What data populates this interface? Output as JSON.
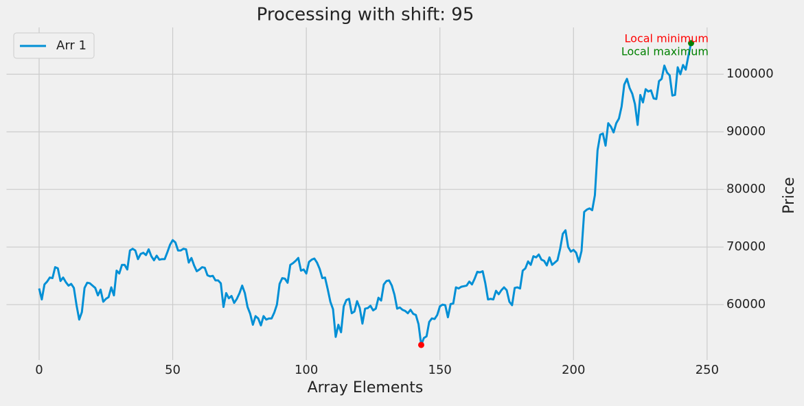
{
  "chart_data": {
    "type": "line",
    "title": "Processing with shift: 95",
    "xlabel": "Array Elements",
    "ylabel": "Price",
    "x": [
      0,
      1,
      2,
      3,
      4,
      5,
      6,
      7,
      8,
      9,
      10,
      11,
      12,
      13,
      14,
      15,
      16,
      17,
      18,
      19,
      20,
      21,
      22,
      23,
      24,
      25,
      26,
      27,
      28,
      29,
      30,
      31,
      32,
      33,
      34,
      35,
      36,
      37,
      38,
      39,
      40,
      41,
      42,
      43,
      44,
      45,
      46,
      47,
      48,
      49,
      50,
      51,
      52,
      53,
      54,
      55,
      56,
      57,
      58,
      59,
      60,
      61,
      62,
      63,
      64,
      65,
      66,
      67,
      68,
      69,
      70,
      71,
      72,
      73,
      74,
      75,
      76,
      77,
      78,
      79,
      80,
      81,
      82,
      83,
      84,
      85,
      86,
      87,
      88,
      89,
      90,
      91,
      92,
      93,
      94,
      95,
      96,
      97,
      98,
      99,
      100,
      101,
      102,
      103,
      104,
      105,
      106,
      107,
      108,
      109,
      110,
      111,
      112,
      113,
      114,
      115,
      116,
      117,
      118,
      119,
      120,
      121,
      122,
      123,
      124,
      125,
      126,
      127,
      128,
      129,
      130,
      131,
      132,
      133,
      134,
      135,
      136,
      137,
      138,
      139,
      140,
      141,
      142,
      143,
      144,
      145,
      146,
      147,
      148,
      149,
      150,
      151,
      152,
      153,
      154,
      155,
      156,
      157,
      158,
      159,
      160,
      161,
      162,
      163,
      164,
      165,
      166,
      167,
      168,
      169,
      170,
      171,
      172,
      173,
      174,
      175,
      176,
      177,
      178,
      179,
      180,
      181,
      182,
      183,
      184,
      185,
      186,
      187,
      188,
      189,
      190,
      191,
      192,
      193,
      194,
      195,
      196,
      197,
      198,
      199,
      200,
      201,
      202,
      203,
      204,
      205,
      206,
      207,
      208,
      209,
      210,
      211,
      212,
      213,
      214,
      215,
      216,
      217,
      218,
      219,
      220,
      221,
      222,
      223,
      224,
      225,
      226,
      227,
      228,
      229,
      230,
      231,
      232,
      233,
      234,
      235,
      236,
      237,
      238,
      239,
      240,
      241,
      242,
      243,
      244
    ],
    "series": [
      {
        "name": "Arr 1",
        "color": "#008fd5",
        "values": [
          62800,
          60900,
          63500,
          64000,
          64700,
          64600,
          66500,
          66300,
          64100,
          64700,
          63900,
          63300,
          63600,
          62900,
          59900,
          57400,
          58700,
          62900,
          63800,
          63700,
          63300,
          62900,
          61600,
          62600,
          60500,
          61000,
          61300,
          63000,
          61600,
          65900,
          65400,
          66900,
          66900,
          66100,
          69400,
          69700,
          69400,
          67900,
          68800,
          69000,
          68600,
          69600,
          68400,
          67700,
          68500,
          67800,
          67900,
          67900,
          69100,
          70400,
          71200,
          70800,
          69400,
          69400,
          69700,
          69600,
          67300,
          68100,
          66800,
          65800,
          66100,
          66500,
          66400,
          65100,
          64900,
          65000,
          64200,
          64200,
          63700,
          59600,
          62000,
          61100,
          61500,
          60300,
          61000,
          62000,
          63300,
          62000,
          59600,
          58400,
          56500,
          58000,
          57600,
          56400,
          58000,
          57400,
          57600,
          57600,
          58600,
          60000,
          63600,
          64600,
          64500,
          63800,
          66900,
          67200,
          67600,
          68100,
          65900,
          66100,
          65400,
          67400,
          67800,
          68000,
          67300,
          66200,
          64600,
          64700,
          62700,
          60500,
          59200,
          54400,
          56500,
          55200,
          59700,
          60800,
          61000,
          58500,
          58800,
          60600,
          59400,
          56700,
          59300,
          59400,
          59800,
          59000,
          59300,
          61200,
          60700,
          63500,
          64100,
          64200,
          63300,
          61700,
          59300,
          59500,
          59100,
          58900,
          58500,
          59100,
          58400,
          58200,
          56600,
          53000,
          54200,
          54500,
          57000,
          57600,
          57500,
          58200,
          59700,
          60000,
          59900,
          57800,
          60100,
          60200,
          63000,
          62800,
          63100,
          63200,
          63300,
          64000,
          63500,
          64500,
          65700,
          65600,
          65800,
          63700,
          60900,
          61000,
          60900,
          62400,
          61800,
          62500,
          63000,
          62500,
          60500,
          59900,
          62900,
          63000,
          62800,
          65900,
          66300,
          67500,
          66900,
          68400,
          68200,
          68700,
          67800,
          67600,
          66800,
          68200,
          66900,
          67300,
          67700,
          69700,
          72300,
          72900,
          70000,
          69200,
          69500,
          69000,
          67400,
          69300,
          76100,
          76500,
          76700,
          76400,
          79000,
          86800,
          89500,
          89700,
          87600,
          91500,
          90900,
          89900,
          91500,
          92300,
          94400,
          98200,
          99200,
          97600,
          96600,
          94800,
          91200,
          96400,
          95100,
          97400,
          97000,
          97200,
          95800,
          95700,
          98800,
          99200,
          101500,
          100300,
          99800,
          96300,
          96400,
          101200,
          100000,
          101600,
          100800,
          103200,
          105400
        ]
      }
    ],
    "points": [
      {
        "x": 143,
        "value": 53000,
        "color": "red"
      },
      {
        "x": 244,
        "value": 105400,
        "color": "green"
      }
    ],
    "annotations": [
      {
        "text": "Local minimum",
        "color": "red"
      },
      {
        "text": "Local maximum",
        "color": "green"
      }
    ],
    "xlim": [
      -12.2,
      256.2
    ],
    "ylim": [
      50375,
      108125
    ],
    "xticks": [
      0,
      50,
      100,
      150,
      200,
      250
    ],
    "yticks": [
      60000,
      70000,
      80000,
      90000,
      100000
    ],
    "grid": true,
    "legend": "upper left"
  }
}
